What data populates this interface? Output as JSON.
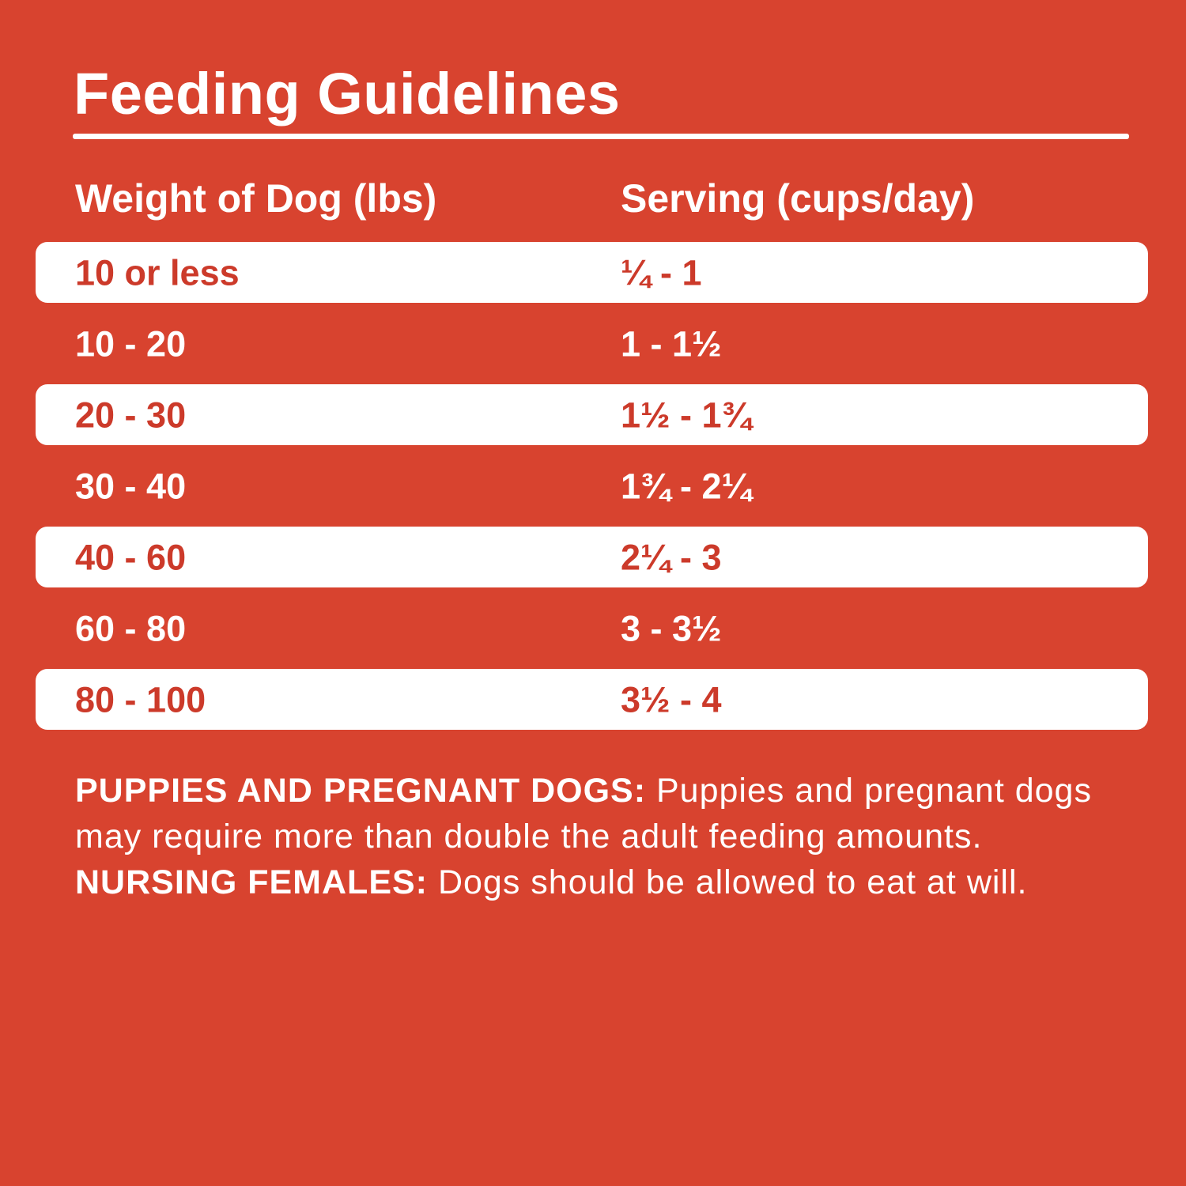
{
  "page": {
    "title": "Feeding Guidelines",
    "colors": {
      "background_red": "#D8432F",
      "band_white": "#FFFFFF",
      "text_on_band_red": "#CC3A2A",
      "text_white": "#FFFFFF"
    }
  },
  "table": {
    "headers": {
      "weight": "Weight of Dog (lbs)",
      "serving": "Serving (cups/day)"
    },
    "rows": [
      {
        "weight": "10 or less",
        "serving": "¼ - 1"
      },
      {
        "weight": "10 - 20",
        "serving": "1 - 1½"
      },
      {
        "weight": "20 - 30",
        "serving": "1½ - 1¾"
      },
      {
        "weight": "30 - 40",
        "serving": "1¾ - 2¼"
      },
      {
        "weight": "40 - 60",
        "serving": "2¼ - 3"
      },
      {
        "weight": "60 - 80",
        "serving": "3 - 3½"
      },
      {
        "weight": "80 - 100",
        "serving": "3½ - 4"
      }
    ]
  },
  "footnote": {
    "bold1": "PUPPIES AND PREGNANT DOGS:",
    "text1": " Puppies and pregnant dogs may require more than double the adult feeding amounts. ",
    "bold2": "NURSING FEMALES:",
    "text2": " Dogs should be allowed to eat at will."
  }
}
